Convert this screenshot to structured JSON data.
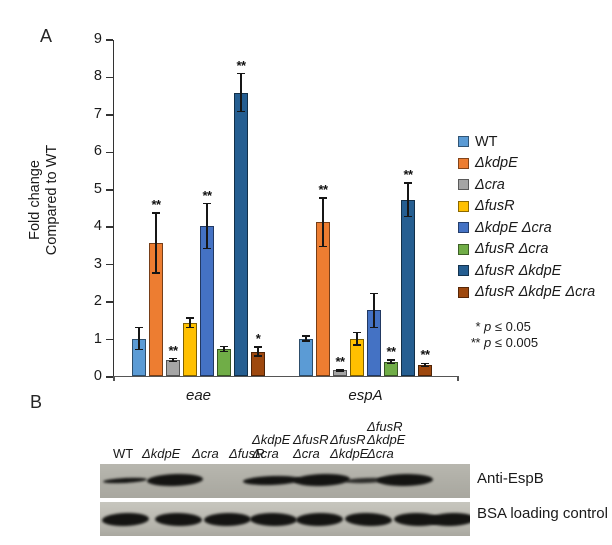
{
  "chart_data": {
    "type": "bar",
    "title": "",
    "ylabel_lines": [
      "Fold change",
      "Compared to WT"
    ],
    "ylim": [
      0,
      9
    ],
    "yticks": [
      0,
      1,
      2,
      3,
      4,
      5,
      6,
      7,
      8,
      9
    ],
    "grid": false,
    "legend_position": "right",
    "categories": [
      "eae",
      "espA"
    ],
    "series": [
      {
        "name": "WT",
        "color": "#5B9BD5",
        "values": [
          1.0,
          1.0
        ],
        "errors": [
          0.3,
          0.07
        ],
        "sig": [
          "",
          ""
        ]
      },
      {
        "name": "ΔkdpE",
        "color": "#ED7D31",
        "values": [
          3.55,
          4.1
        ],
        "errors": [
          0.8,
          0.65
        ],
        "sig": [
          "**",
          "**"
        ]
      },
      {
        "name": "Δcra",
        "color": "#A5A5A5",
        "values": [
          0.42,
          0.15
        ],
        "errors": [
          0.04,
          0.02
        ],
        "sig": [
          "**",
          "**"
        ]
      },
      {
        "name": "ΔfusR",
        "color": "#FFC000",
        "values": [
          1.42,
          1.0
        ],
        "errors": [
          0.13,
          0.17
        ],
        "sig": [
          "",
          ""
        ]
      },
      {
        "name": "ΔkdpE Δcra",
        "color": "#4472C4",
        "values": [
          4.0,
          1.75
        ],
        "errors": [
          0.6,
          0.45
        ],
        "sig": [
          "**",
          ""
        ]
      },
      {
        "name": "ΔfusR Δcra",
        "color": "#70AD47",
        "values": [
          0.72,
          0.38
        ],
        "errors": [
          0.06,
          0.05
        ],
        "sig": [
          "",
          "**"
        ]
      },
      {
        "name": "ΔfusR ΔkdpE",
        "color": "#255E91",
        "values": [
          7.57,
          4.7
        ],
        "errors": [
          0.5,
          0.45
        ],
        "sig": [
          "**",
          "**"
        ]
      },
      {
        "name": "ΔfusR ΔkdpE Δcra",
        "color": "#9E480E",
        "values": [
          0.65,
          0.3
        ],
        "errors": [
          0.12,
          0.04
        ],
        "sig": [
          "*",
          "**"
        ]
      }
    ]
  },
  "panelA": {
    "label": "A",
    "footnotes": [
      {
        "stars": "*",
        "text": "p ≤ 0.05"
      },
      {
        "stars": "**",
        "text": "p ≤ 0.005"
      }
    ]
  },
  "panelB": {
    "label": "B",
    "lanes": [
      {
        "lines": [
          "WT"
        ]
      },
      {
        "lines": [
          "ΔkdpE"
        ]
      },
      {
        "lines": [
          "Δcra"
        ]
      },
      {
        "lines": [
          "ΔfusR"
        ]
      },
      {
        "lines": [
          "ΔkdpE",
          "Δcra"
        ]
      },
      {
        "lines": [
          "ΔfusR",
          "Δcra"
        ]
      },
      {
        "lines": [
          "ΔfusR",
          "ΔkdpE"
        ]
      },
      {
        "lines": [
          "ΔfusR",
          "ΔkdpE",
          "Δcra"
        ]
      }
    ],
    "blots": [
      {
        "label": "Anti-EspB",
        "bands": [
          "thin",
          "strong",
          "none",
          "medium",
          "strong",
          "faint",
          "strong",
          "none"
        ]
      },
      {
        "label": "BSA loading control",
        "bands": [
          "strong",
          "strong",
          "strong",
          "strong",
          "strong",
          "strong",
          "strong",
          "strong"
        ]
      }
    ]
  }
}
